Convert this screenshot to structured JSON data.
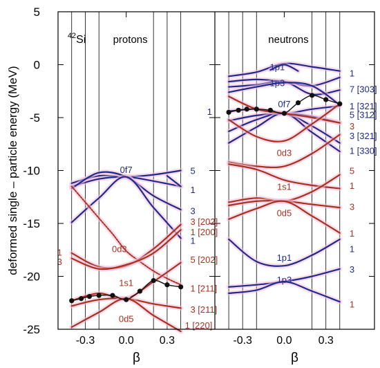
{
  "chart_data": {
    "type": "line",
    "ylabel": "deformed single – particle energy (MeV)",
    "ylim": [
      -25,
      5
    ],
    "yticks": [
      5,
      0,
      -5,
      -10,
      -15,
      -20,
      -25
    ],
    "xlim": [
      -0.5,
      0.65
    ],
    "vertical_gridlines_beta": [
      -0.4,
      -0.3,
      -0.2,
      0.2,
      0.3,
      0.4
    ],
    "colors": {
      "blue": "#1f2a8c",
      "red": "#a8301f",
      "halo": "#f3c0d8",
      "dots": "#111111",
      "proton_label": "#1f2a8c",
      "neutron_label": "#1f2a8c"
    },
    "panels": [
      {
        "name": "protons",
        "nucleus_mass": "42",
        "nucleus_symbol": "Si",
        "title": "protons",
        "xlabel": "β",
        "xticks": [
          {
            "beta": -0.3,
            "label": "-0.3"
          },
          {
            "beta": 0.0,
            "label": "0.0"
          },
          {
            "beta": 0.3,
            "label": "0.3"
          }
        ],
        "series": [
          {
            "color": "blue",
            "beta": [
              -0.4,
              -0.2,
              0.0,
              0.2,
              0.4
            ],
            "energy": [
              -11.2,
              -10.5,
              -10.6,
              -10.4,
              -10.0
            ]
          },
          {
            "color": "blue",
            "beta": [
              -0.4,
              -0.2,
              0.0,
              0.2,
              0.4
            ],
            "energy": [
              -11.5,
              -10.8,
              -10.6,
              -11.0,
              -11.5
            ]
          },
          {
            "color": "blue",
            "beta": [
              -0.4,
              -0.2,
              0.0,
              0.2,
              0.4
            ],
            "energy": [
              -11.7,
              -10.2,
              -10.6,
              -12.4,
              -13.7
            ]
          },
          {
            "color": "blue",
            "beta": [
              -0.4,
              -0.2,
              0.0,
              0.2,
              0.4
            ],
            "energy": [
              -14.9,
              -12.6,
              -10.6,
              -13.5,
              -16.4
            ]
          },
          {
            "color": "blue",
            "beta": [
              0.3,
              0.4
            ],
            "energy": [
              -10.5,
              -11.5
            ],
            "dotted": false
          },
          {
            "color": "red",
            "beta": [
              -0.4,
              -0.3,
              -0.2,
              -0.1,
              0.0,
              0.1,
              0.2,
              0.3,
              0.4
            ],
            "energy": [
              -11.5,
              -13.0,
              -14.5,
              -16.0,
              -17.6,
              -18.6,
              -19.5,
              -20.2,
              -20.8
            ],
            "dotted": true
          },
          {
            "color": "red",
            "beta": [
              -0.4,
              -0.2,
              0.0,
              0.2,
              0.4
            ],
            "energy": [
              -17.8,
              -19.1,
              -19.0,
              -17.4,
              -15.1
            ]
          },
          {
            "color": "red",
            "beta": [
              -0.4,
              -0.2,
              0.0,
              0.2,
              0.4
            ],
            "energy": [
              -18.3,
              -19.3,
              -18.9,
              -17.8,
              -15.6
            ]
          },
          {
            "color": "red",
            "beta": [
              -0.4,
              -0.2,
              0.0,
              0.2,
              0.4
            ],
            "energy": [
              -22.3,
              -21.6,
              -22.1,
              -20.5,
              -18.7
            ]
          },
          {
            "color": "red",
            "beta": [
              -0.4,
              -0.2,
              0.0,
              0.2,
              0.4
            ],
            "energy": [
              -22.8,
              -22.2,
              -22.1,
              -22.6,
              -23.0
            ]
          },
          {
            "color": "red",
            "beta": [
              -0.4,
              -0.2,
              0.0,
              0.2,
              0.4
            ],
            "energy": [
              -24.8,
              -23.4,
              -22.1,
              -23.7,
              -25.2
            ]
          },
          {
            "color": "dots",
            "beta": [
              -0.4,
              -0.33,
              -0.27,
              -0.2,
              -0.1,
              0.0,
              0.1,
              0.2,
              0.3,
              0.4
            ],
            "energy": [
              -22.3,
              -22.1,
              -21.9,
              -21.8,
              -21.8,
              -22.2,
              -21.4,
              -20.4,
              -20.8,
              -21.0
            ],
            "markers": true
          }
        ],
        "labels": [
          {
            "text": "0f7",
            "beta": 0.0,
            "energy": -9.9,
            "color": "blue"
          },
          {
            "text": "5",
            "beta": 0.47,
            "energy": -10.0,
            "color": "blue"
          },
          {
            "text": "1",
            "beta": 0.47,
            "energy": -11.8,
            "color": "blue"
          },
          {
            "text": "3",
            "beta": 0.47,
            "energy": -13.8,
            "color": "blue"
          },
          {
            "text": "3 [202]",
            "beta": 0.47,
            "energy": -14.8,
            "color": "red"
          },
          {
            "text": "1 [200]",
            "beta": 0.47,
            "energy": -15.8,
            "color": "red"
          },
          {
            "text": "1",
            "beta": 0.47,
            "energy": -16.6,
            "color": "blue"
          },
          {
            "text": "0d3",
            "beta": -0.05,
            "energy": -17.4,
            "color": "red"
          },
          {
            "text": "5 [202]",
            "beta": 0.47,
            "energy": -18.4,
            "color": "red"
          },
          {
            "text": "1",
            "beta": -0.47,
            "energy": -17.7,
            "color": "red"
          },
          {
            "text": "3",
            "beta": -0.47,
            "energy": -18.6,
            "color": "red"
          },
          {
            "text": "1s1",
            "beta": 0.0,
            "energy": -20.6,
            "color": "red"
          },
          {
            "text": "1 [211]",
            "beta": 0.47,
            "energy": -21.1,
            "color": "red"
          },
          {
            "text": "3 [211]",
            "beta": 0.47,
            "energy": -23.1,
            "color": "red"
          },
          {
            "text": "0d5",
            "beta": 0.0,
            "energy": -24.0,
            "color": "red"
          },
          {
            "text": "1 [220]",
            "beta": 0.43,
            "energy": -24.6,
            "color": "red"
          }
        ]
      },
      {
        "name": "neutrons",
        "title": "neutrons",
        "xlabel": "β",
        "xticks": [
          {
            "beta": -0.3,
            "label": "-0.3"
          },
          {
            "beta": 0.0,
            "label": "0.0"
          },
          {
            "beta": 0.3,
            "label": "0.3"
          }
        ],
        "series": [
          {
            "color": "blue",
            "beta": [
              -0.4,
              -0.2,
              0.0,
              0.2,
              0.4
            ],
            "energy": [
              -1.1,
              -0.7,
              0.1,
              -0.2,
              -0.6
            ]
          },
          {
            "color": "blue",
            "beta": [
              -0.1,
              0.0,
              0.1
            ],
            "energy": [
              -0.5,
              0.0,
              -0.6
            ]
          },
          {
            "color": "blue",
            "beta": [
              -0.4,
              -0.2,
              0.0,
              0.2,
              0.4
            ],
            "energy": [
              -1.6,
              -1.4,
              -1.6,
              -2.0,
              -1.2
            ]
          },
          {
            "color": "blue",
            "beta": [
              -0.4,
              -0.2,
              0.0,
              0.2,
              0.4
            ],
            "energy": [
              -2.1,
              -1.9,
              -1.6,
              -2.8,
              -2.4
            ]
          },
          {
            "color": "blue",
            "beta": [
              -0.4,
              -0.2,
              0.0,
              0.2,
              0.4
            ],
            "energy": [
              -2.6,
              -2.1,
              -1.7,
              -2.0,
              -3.8
            ]
          },
          {
            "color": "blue",
            "beta": [
              -0.4,
              -0.2,
              0.0,
              0.2,
              0.4
            ],
            "energy": [
              -4.4,
              -4.2,
              -4.6,
              -4.2,
              -3.9
            ]
          },
          {
            "color": "blue",
            "beta": [
              -0.4,
              -0.2,
              0.0,
              0.2,
              0.4
            ],
            "energy": [
              -5.3,
              -4.8,
              -4.6,
              -4.9,
              -5.5
            ]
          },
          {
            "color": "blue",
            "beta": [
              -0.4,
              -0.2,
              0.0,
              0.2,
              0.4
            ],
            "energy": [
              -6.3,
              -5.2,
              -4.6,
              -5.8,
              -7.4
            ]
          },
          {
            "color": "blue",
            "beta": [
              -0.4,
              -0.2,
              0.0,
              0.2,
              0.4
            ],
            "energy": [
              -7.4,
              -5.9,
              -4.6,
              -6.4,
              -8.2
            ]
          },
          {
            "color": "red",
            "beta": [
              -0.4,
              -0.2,
              0.0,
              0.2,
              0.4
            ],
            "energy": [
              -3.0,
              -4.2,
              -4.6,
              -5.0,
              -5.5
            ]
          },
          {
            "color": "red",
            "beta": [
              -0.4,
              -0.2,
              0.0,
              0.2,
              0.4
            ],
            "energy": [
              -5.2,
              -6.8,
              -7.2,
              -5.6,
              -3.7
            ]
          },
          {
            "color": "red",
            "beta": [
              -0.4,
              -0.2,
              0.0,
              0.2,
              0.4
            ],
            "energy": [
              -9.2,
              -9.6,
              -9.6,
              -8.4,
              -6.6
            ]
          },
          {
            "color": "red",
            "beta": [
              -0.4,
              -0.2,
              0.0,
              0.2,
              0.4
            ],
            "energy": [
              -9.4,
              -9.9,
              -10.9,
              -11.4,
              -11.7
            ]
          },
          {
            "color": "red",
            "beta": [
              -0.4,
              -0.2,
              0.0,
              0.2,
              0.4
            ],
            "energy": [
              -13.0,
              -12.6,
              -12.9,
              -12.0,
              -10.4
            ]
          },
          {
            "color": "red",
            "beta": [
              -0.4,
              -0.2,
              0.0,
              0.2,
              0.4
            ],
            "energy": [
              -13.3,
              -12.9,
              -12.9,
              -13.2,
              -13.5
            ]
          },
          {
            "color": "red",
            "beta": [
              -0.4,
              -0.2,
              0.0,
              0.2,
              0.4
            ],
            "energy": [
              -14.6,
              -13.6,
              -12.9,
              -14.3,
              -15.9
            ]
          },
          {
            "color": "blue",
            "beta": [
              -0.4,
              -0.2,
              0.0,
              0.2,
              0.4
            ],
            "energy": [
              -16.5,
              -18.6,
              -19.0,
              -18.0,
              -16.5
            ]
          },
          {
            "color": "blue",
            "beta": [
              -0.4,
              -0.2,
              0.0,
              0.2,
              0.4
            ],
            "energy": [
              -21.0,
              -20.8,
              -20.5,
              -20.0,
              -19.3
            ]
          },
          {
            "color": "blue",
            "beta": [
              -0.4,
              -0.2,
              0.0,
              0.2,
              0.4
            ],
            "energy": [
              -21.6,
              -21.3,
              -20.5,
              -21.4,
              -22.4
            ]
          },
          {
            "color": "dots",
            "beta": [
              -0.4,
              -0.33,
              -0.27,
              -0.2,
              -0.1,
              0.0,
              0.1,
              0.2,
              0.3,
              0.4
            ],
            "energy": [
              -4.5,
              -4.3,
              -4.2,
              -4.2,
              -4.3,
              -4.6,
              -3.6,
              -2.9,
              -3.3,
              -3.7
            ],
            "markers": true
          }
        ],
        "labels": [
          {
            "text": "1p1",
            "beta": -0.05,
            "energy": -0.2,
            "color": "blue"
          },
          {
            "text": "1",
            "beta": 0.47,
            "energy": -0.8,
            "color": "blue"
          },
          {
            "text": "1p3",
            "beta": -0.05,
            "energy": -1.7,
            "color": "blue"
          },
          {
            "text": "7 [303]",
            "beta": 0.47,
            "energy": -2.3,
            "color": "blue"
          },
          {
            "text": "0f7",
            "beta": 0.0,
            "energy": -3.7,
            "color": "blue"
          },
          {
            "text": "1 [321]",
            "beta": 0.47,
            "energy": -3.9,
            "color": "blue"
          },
          {
            "text": "1",
            "beta": -0.52,
            "energy": -4.4,
            "color": "blue"
          },
          {
            "text": "5 [312]",
            "beta": 0.47,
            "energy": -4.7,
            "color": "blue"
          },
          {
            "text": "3",
            "beta": 0.47,
            "energy": -5.8,
            "color": "red"
          },
          {
            "text": "3 [321]",
            "beta": 0.47,
            "energy": -6.7,
            "color": "blue"
          },
          {
            "text": "1 [330]",
            "beta": 0.47,
            "energy": -8.1,
            "color": "blue"
          },
          {
            "text": "0d3",
            "beta": 0.0,
            "energy": -8.3,
            "color": "red"
          },
          {
            "text": "5",
            "beta": 0.47,
            "energy": -10.0,
            "color": "red"
          },
          {
            "text": "1s1",
            "beta": 0.0,
            "energy": -11.5,
            "color": "red"
          },
          {
            "text": "1",
            "beta": 0.47,
            "energy": -11.4,
            "color": "red"
          },
          {
            "text": "3",
            "beta": 0.47,
            "energy": -13.4,
            "color": "red"
          },
          {
            "text": "0d5",
            "beta": 0.0,
            "energy": -14.0,
            "color": "red"
          },
          {
            "text": "1",
            "beta": 0.47,
            "energy": -15.9,
            "color": "red"
          },
          {
            "text": "1",
            "beta": 0.47,
            "energy": -17.4,
            "color": "blue"
          },
          {
            "text": "1p1",
            "beta": 0.0,
            "energy": -18.2,
            "color": "blue"
          },
          {
            "text": "3",
            "beta": 0.47,
            "energy": -19.3,
            "color": "blue"
          },
          {
            "text": "1p3",
            "beta": 0.0,
            "energy": -20.3,
            "color": "blue"
          },
          {
            "text": "1",
            "beta": 0.47,
            "energy": -22.6,
            "color": "red"
          }
        ]
      }
    ]
  }
}
